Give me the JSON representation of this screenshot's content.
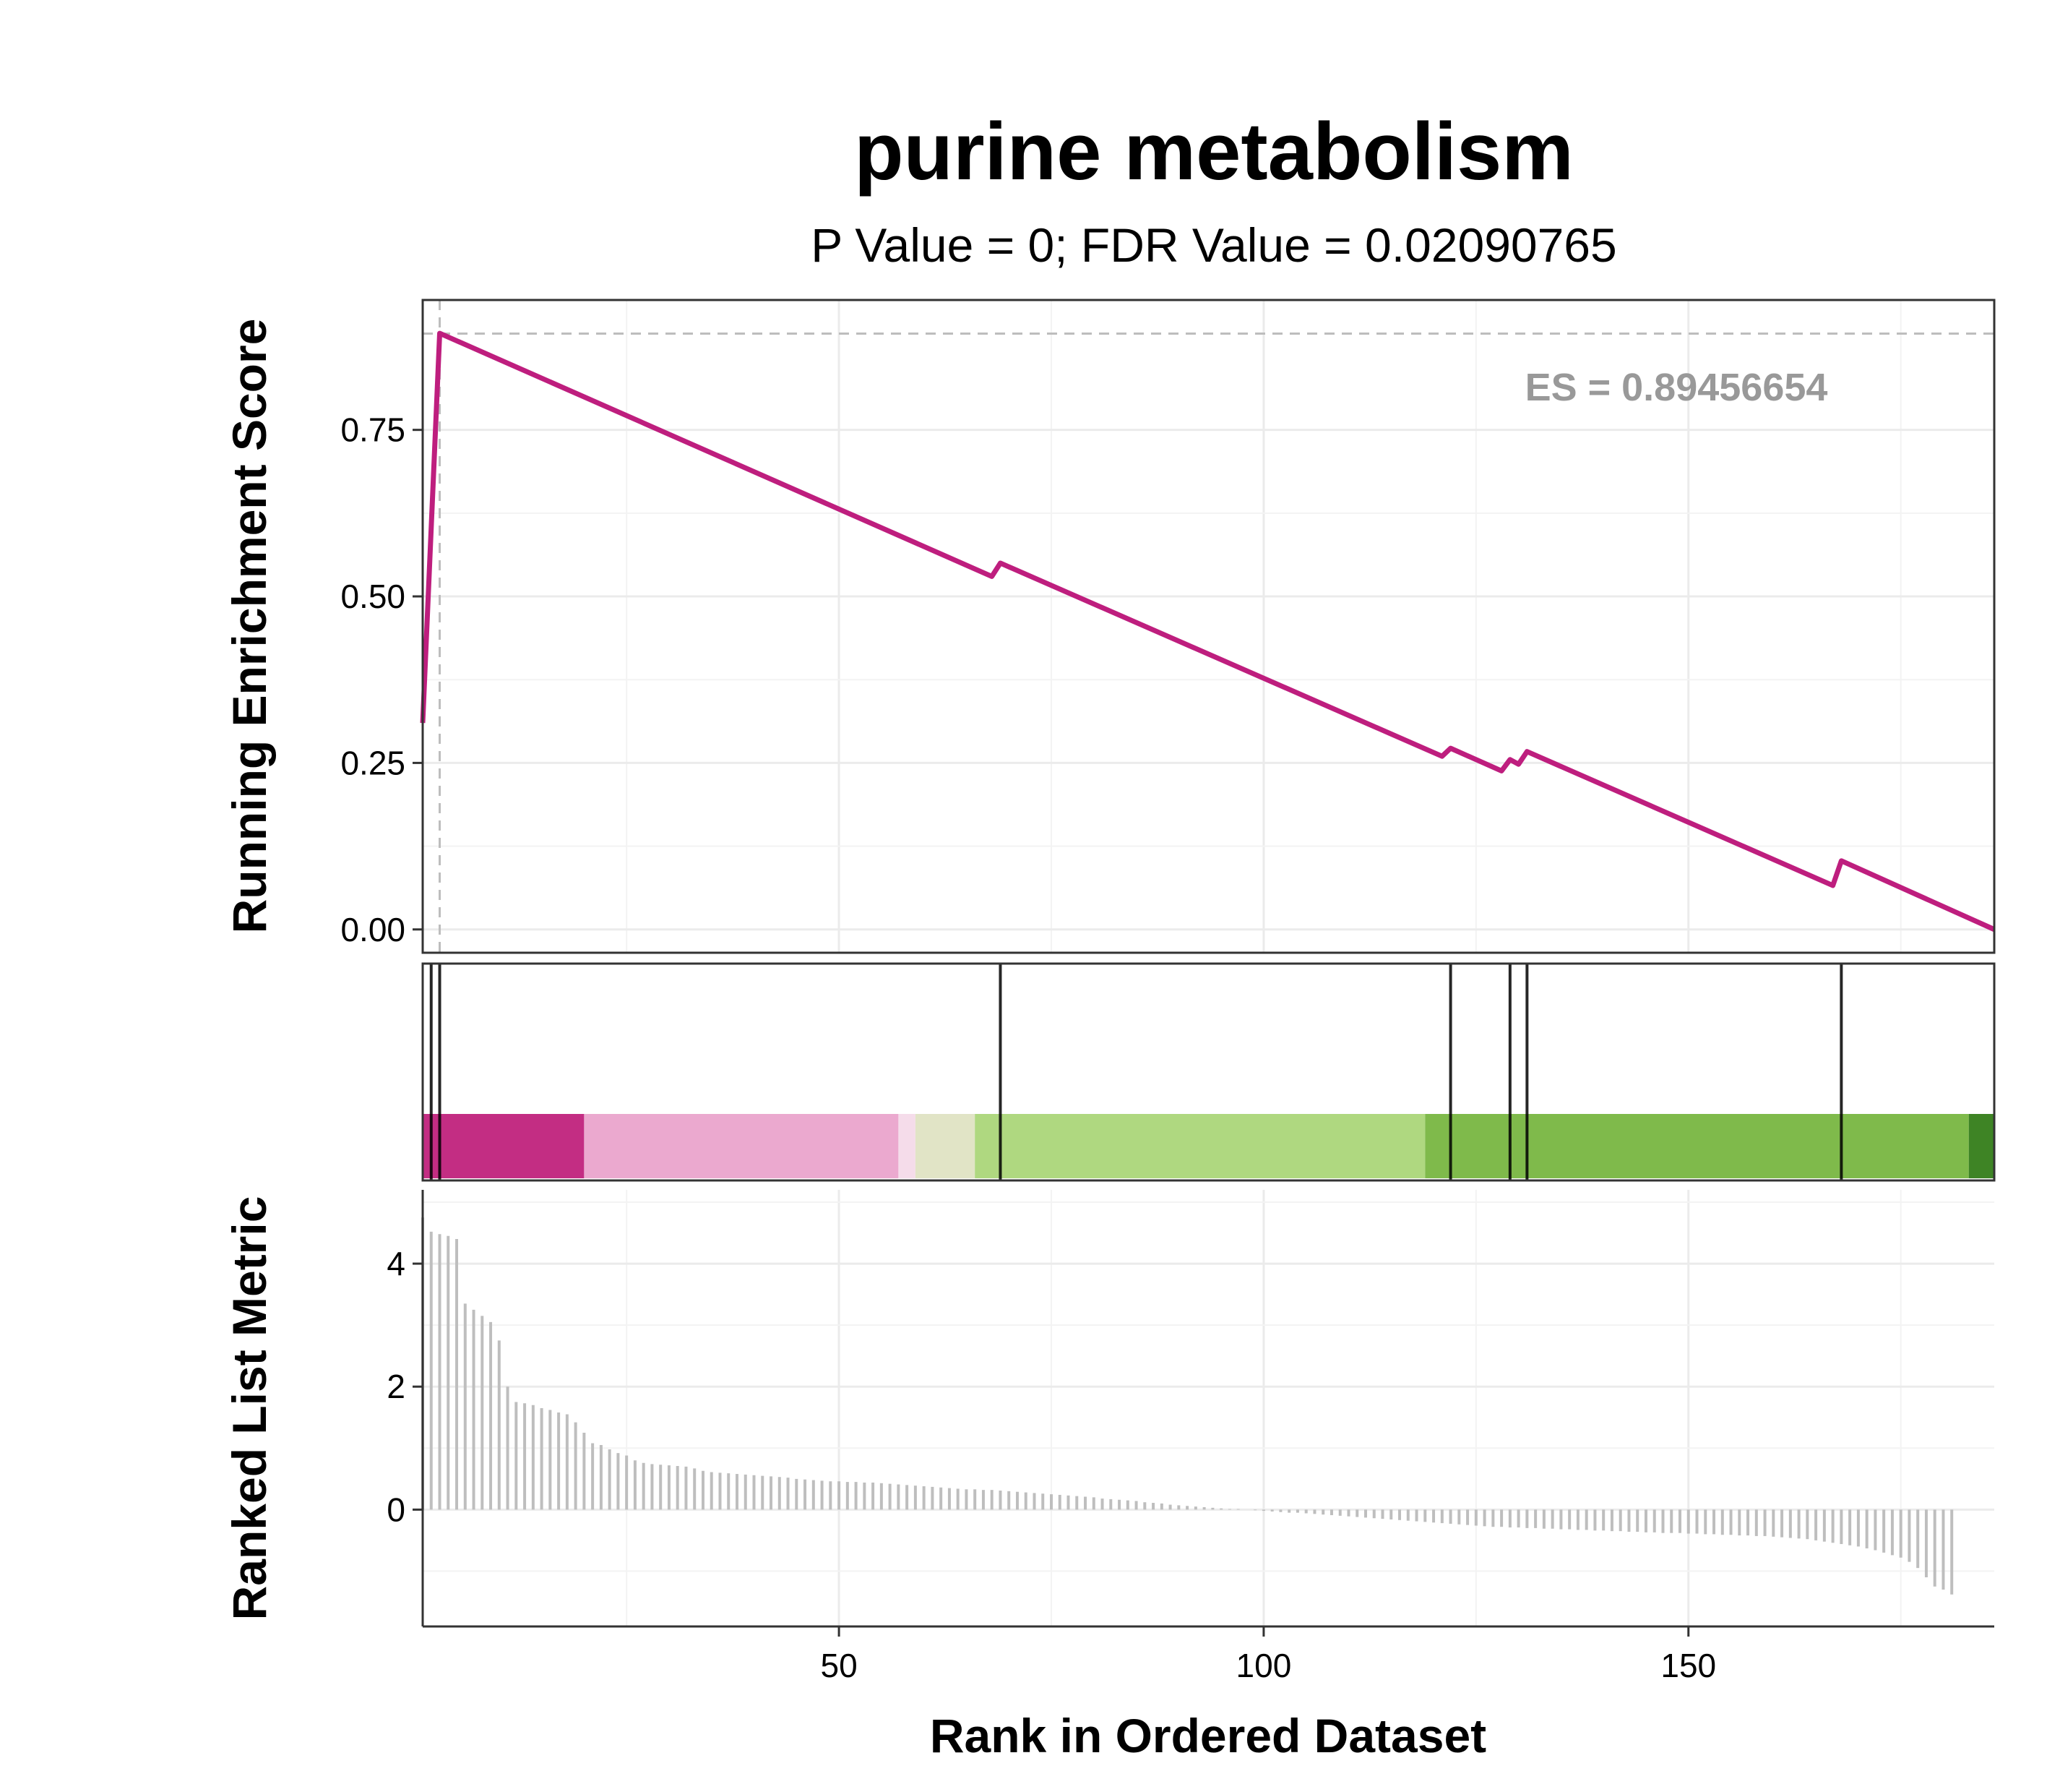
{
  "chart_data": {
    "type": "line",
    "title": "purine metabolism",
    "subtitle": "P Value = 0; FDR Value = 0.02090765",
    "annotation": "ES = 0.89456654",
    "es_value": 0.89456654,
    "es_rank": 3,
    "xlabel": "Rank in Ordered Dataset",
    "xlim": [
      1,
      186
    ],
    "x_ticks": [
      50,
      100,
      150
    ],
    "x_tick_labels": [
      "50",
      "100",
      "150"
    ],
    "grid": true,
    "panels": {
      "running_es": {
        "ylabel": "Running Enrichment Score",
        "ylim": [
          -0.035,
          0.945
        ],
        "y_ticks": [
          0,
          0.25,
          0.5,
          0.75
        ],
        "y_tick_labels": [
          "0.00",
          "0.25",
          "0.50",
          "0.75"
        ],
        "color": "#BE1E7E",
        "curve": {
          "x": [
            1,
            3,
            68,
            69,
            121,
            122,
            128,
            129,
            130,
            131,
            167,
            168,
            186
          ],
          "y": [
            0.31,
            0.895,
            0.53,
            0.55,
            0.26,
            0.272,
            0.238,
            0.255,
            0.248,
            0.267,
            0.066,
            0.103,
            0.0
          ]
        }
      },
      "gene_hits": {
        "hit_ranks": [
          2,
          3,
          69,
          122,
          129,
          131,
          168
        ],
        "color_bands": [
          {
            "x0": 1,
            "x1": 20,
            "color": "#C32D83"
          },
          {
            "x0": 20,
            "x1": 57,
            "color": "#EBA9CF"
          },
          {
            "x0": 57,
            "x1": 59,
            "color": "#F5DCEA"
          },
          {
            "x0": 59,
            "x1": 66,
            "color": "#E1E4C6"
          },
          {
            "x0": 66,
            "x1": 119,
            "color": "#AFD880"
          },
          {
            "x0": 119,
            "x1": 183,
            "color": "#7FBA4B"
          },
          {
            "x0": 183,
            "x1": 186,
            "color": "#3E8425"
          }
        ]
      },
      "ranked_metric": {
        "ylabel": "Ranked List Metric",
        "ylim": [
          -1.9,
          5.2
        ],
        "y_ticks": [
          0,
          2,
          4
        ],
        "y_tick_labels": [
          "0",
          "2",
          "4"
        ],
        "bar_color": "#BEBEBE",
        "values": [
          4.75,
          4.52,
          4.48,
          4.45,
          4.4,
          3.35,
          3.25,
          3.15,
          3.05,
          2.75,
          2.0,
          1.75,
          1.73,
          1.7,
          1.65,
          1.62,
          1.58,
          1.55,
          1.42,
          1.25,
          1.08,
          1.05,
          0.98,
          0.92,
          0.88,
          0.8,
          0.76,
          0.74,
          0.73,
          0.72,
          0.71,
          0.7,
          0.67,
          0.63,
          0.61,
          0.6,
          0.59,
          0.58,
          0.57,
          0.56,
          0.55,
          0.54,
          0.53,
          0.52,
          0.5,
          0.49,
          0.48,
          0.47,
          0.46,
          0.46,
          0.45,
          0.45,
          0.44,
          0.44,
          0.43,
          0.42,
          0.41,
          0.4,
          0.39,
          0.38,
          0.37,
          0.36,
          0.35,
          0.34,
          0.33,
          0.33,
          0.32,
          0.32,
          0.31,
          0.3,
          0.29,
          0.28,
          0.27,
          0.26,
          0.25,
          0.24,
          0.23,
          0.22,
          0.21,
          0.2,
          0.18,
          0.17,
          0.16,
          0.15,
          0.14,
          0.12,
          0.11,
          0.1,
          0.08,
          0.07,
          0.06,
          0.05,
          0.04,
          0.03,
          0.02,
          0.01,
          0.01,
          0.0,
          -0.01,
          -0.02,
          -0.03,
          -0.04,
          -0.05,
          -0.05,
          -0.06,
          -0.07,
          -0.08,
          -0.09,
          -0.1,
          -0.11,
          -0.12,
          -0.13,
          -0.14,
          -0.15,
          -0.16,
          -0.17,
          -0.18,
          -0.19,
          -0.2,
          -0.21,
          -0.22,
          -0.23,
          -0.24,
          -0.25,
          -0.26,
          -0.27,
          -0.28,
          -0.28,
          -0.29,
          -0.29,
          -0.3,
          -0.3,
          -0.31,
          -0.31,
          -0.32,
          -0.32,
          -0.33,
          -0.33,
          -0.34,
          -0.34,
          -0.35,
          -0.35,
          -0.36,
          -0.36,
          -0.37,
          -0.37,
          -0.38,
          -0.38,
          -0.38,
          -0.39,
          -0.39,
          -0.4,
          -0.4,
          -0.41,
          -0.41,
          -0.42,
          -0.42,
          -0.43,
          -0.43,
          -0.44,
          -0.45,
          -0.46,
          -0.47,
          -0.48,
          -0.5,
          -0.52,
          -0.54,
          -0.56,
          -0.58,
          -0.6,
          -0.63,
          -0.66,
          -0.7,
          -0.74,
          -0.78,
          -0.85,
          -0.95,
          -1.1,
          -1.25,
          -1.3,
          -1.38
        ]
      }
    }
  }
}
